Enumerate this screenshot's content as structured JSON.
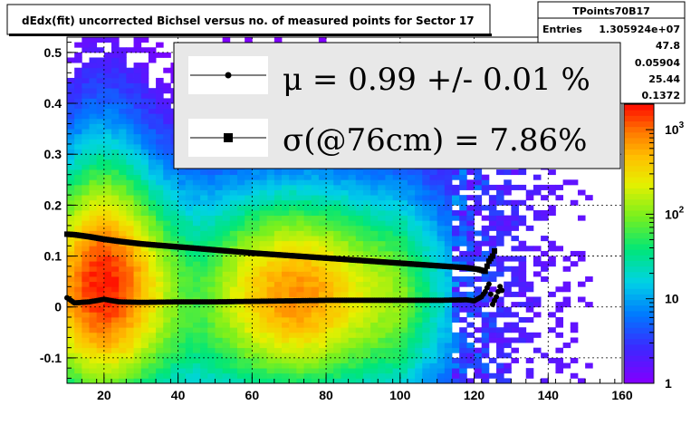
{
  "chart_data": {
    "type": "heatmap",
    "title": "dEdx(fit) uncorrected Bichsel versus no. of measured points for Sector 17",
    "xlabel": "",
    "ylabel": "",
    "xlim": [
      10,
      160
    ],
    "ylim": [
      -0.15,
      0.53
    ],
    "x_ticks": [
      "20",
      "40",
      "60",
      "80",
      "100",
      "120",
      "140",
      "160"
    ],
    "y_ticks": [
      "-0.1",
      "0",
      "0.1",
      "0.2",
      "0.3",
      "0.4",
      "0.5"
    ],
    "z_scale": "log",
    "z_range": [
      1,
      2000
    ],
    "z_ticks": [
      "1",
      "10",
      "10",
      "10"
    ],
    "z_tick_exponents": [
      "",
      "",
      "2",
      "3"
    ],
    "grid": true,
    "stats_box": {
      "name": "TPoints70B17",
      "rows": [
        {
          "label": "Entries",
          "value": "1.305924e+07"
        },
        {
          "label": "",
          "value": "47.8"
        },
        {
          "label": "",
          "value": "0.05904"
        },
        {
          "label": "",
          "value": "25.44"
        },
        {
          "label": "",
          "value": "0.1372"
        }
      ]
    },
    "legend": {
      "placement": "top-center",
      "entries": [
        {
          "label": "μ  =  0.99 +/-  0.01 %",
          "marker": "circle"
        },
        {
          "label": "σ(@76cm) =  7.86%",
          "marker": "square"
        }
      ]
    },
    "series": [
      {
        "name": "",
        "marker": "circle",
        "x": [
          10,
          12,
          16,
          20,
          24,
          30,
          40,
          50,
          60,
          70,
          80,
          90,
          100,
          110,
          118,
          120,
          122,
          123,
          124,
          125,
          126,
          127,
          128
        ],
        "y": [
          0.018,
          0.008,
          0.01,
          0.015,
          0.01,
          0.009,
          0.01,
          0.01,
          0.011,
          0.012,
          0.013,
          0.013,
          0.013,
          0.013,
          0.014,
          0.012,
          0.02,
          0.03,
          0.045,
          0.005,
          0.02,
          0.04,
          0.025
        ]
      },
      {
        "name": "",
        "marker": "square",
        "x": [
          10,
          12,
          16,
          20,
          24,
          30,
          40,
          50,
          60,
          70,
          80,
          90,
          100,
          110,
          118,
          121,
          123,
          124,
          125,
          126
        ],
        "y": [
          0.143,
          0.142,
          0.138,
          0.133,
          0.129,
          0.124,
          0.118,
          0.112,
          0.106,
          0.101,
          0.096,
          0.091,
          0.086,
          0.081,
          0.077,
          0.074,
          0.07,
          0.09,
          0.1,
          0.12
        ]
      }
    ]
  }
}
